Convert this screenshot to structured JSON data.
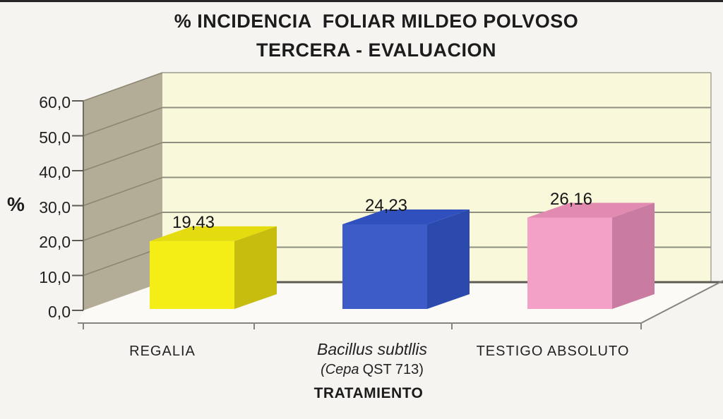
{
  "window": {
    "top_strip_color": "#262626",
    "background_color": "#f6f4f1"
  },
  "chart_data": {
    "type": "bar",
    "projection": "3d",
    "title": "% INCIDENCIA  FOLIAR MILDEO POLVOSO",
    "subtitle": "TERCERA - EVALUACION",
    "ylabel": "%",
    "xlabel": "TRATAMIENTO",
    "ylim": [
      0,
      60
    ],
    "ytick_interval": 10,
    "ytick_labels": [
      "60,0",
      "50,0",
      "40,0",
      "30,0",
      "20,0",
      "10,0",
      "0,0"
    ],
    "grid": true,
    "legend": false,
    "back_wall_color": "#faf8da",
    "side_wall_color": "#b3ad97",
    "categories": [
      "REGALIA",
      "Bacillus subtllis (Cepa QST 713)",
      "TESTIGO ABSOLUTO"
    ],
    "bars": [
      {
        "category": "REGALIA",
        "value": 19.43,
        "value_label": "19,43",
        "face_color": "#f5ee16",
        "top_color": "#e4dc0e",
        "side_color": "#c6bd0e"
      },
      {
        "category": "Bacillus subtllis (Cepa QST 713)",
        "value": 24.23,
        "value_label": "24,23",
        "face_color": "#3d5cc8",
        "top_color": "#3051bd",
        "side_color": "#2c49ae"
      },
      {
        "category": "TESTIGO ABSOLUTO",
        "value": 26.16,
        "value_label": "26,16",
        "face_color": "#f3a1c6",
        "top_color": "#e28bb0",
        "side_color": "#ca7ba2"
      }
    ],
    "category_labels": {
      "cat1": "REGALIA",
      "cat2_line1": "Bacillus subtllis",
      "cat2_line2_italic": "(Cepa",
      "cat2_line2_rest": "QST 713)",
      "cat3": "TESTIGO ABSOLUTO"
    }
  }
}
